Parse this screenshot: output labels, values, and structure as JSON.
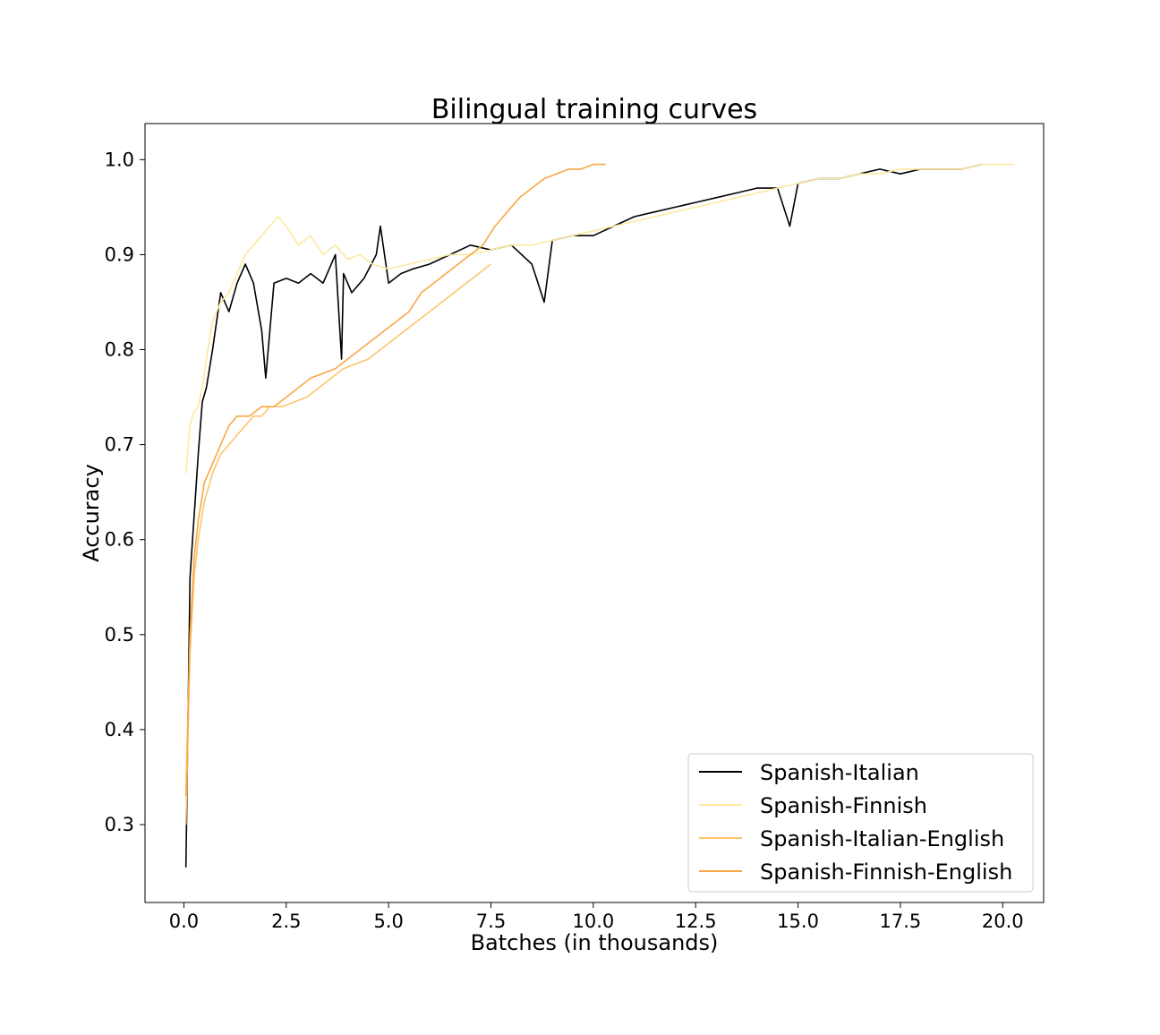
{
  "chart_data": {
    "type": "line",
    "title": "Bilingual training curves",
    "xlabel": "Batches (in thousands)",
    "ylabel": "Accuracy",
    "xlim": [
      -0.95,
      21.0
    ],
    "ylim": [
      0.218,
      1.038
    ],
    "xticks": [
      0.0,
      2.5,
      5.0,
      7.5,
      10.0,
      12.5,
      15.0,
      17.5,
      20.0
    ],
    "xtick_labels": [
      "0.0",
      "2.5",
      "5.0",
      "7.5",
      "10.0",
      "12.5",
      "15.0",
      "17.5",
      "20.0"
    ],
    "yticks": [
      0.3,
      0.4,
      0.5,
      0.6,
      0.7,
      0.8,
      0.9,
      1.0
    ],
    "ytick_labels": [
      "0.3",
      "0.4",
      "0.5",
      "0.6",
      "0.7",
      "0.8",
      "0.9",
      "1.0"
    ],
    "grid": false,
    "legend_position": "lower-right",
    "series": [
      {
        "name": "Spanish-Italian",
        "color": "#000000",
        "x": [
          0.05,
          0.15,
          0.25,
          0.35,
          0.45,
          0.55,
          0.7,
          0.9,
          1.1,
          1.3,
          1.5,
          1.7,
          1.9,
          2.0,
          2.2,
          2.5,
          2.8,
          3.1,
          3.4,
          3.7,
          3.85,
          3.9,
          4.1,
          4.4,
          4.7,
          4.8,
          5.0,
          5.3,
          5.6,
          6.0,
          6.5,
          7.0,
          7.5,
          8.0,
          8.5,
          8.8,
          9.0,
          9.5,
          10.0,
          10.5,
          11.0,
          11.5,
          12.0,
          12.5,
          13.0,
          13.5,
          14.0,
          14.5,
          14.8,
          15.0,
          15.5,
          16.0,
          16.5,
          17.0,
          17.5,
          18.0,
          18.5,
          19.0,
          19.5
        ],
        "y": [
          0.255,
          0.56,
          0.625,
          0.69,
          0.745,
          0.76,
          0.8,
          0.86,
          0.84,
          0.87,
          0.89,
          0.87,
          0.82,
          0.77,
          0.87,
          0.875,
          0.87,
          0.88,
          0.87,
          0.9,
          0.79,
          0.88,
          0.86,
          0.875,
          0.9,
          0.93,
          0.87,
          0.88,
          0.885,
          0.89,
          0.9,
          0.91,
          0.905,
          0.91,
          0.89,
          0.85,
          0.915,
          0.92,
          0.92,
          0.93,
          0.94,
          0.945,
          0.95,
          0.955,
          0.96,
          0.965,
          0.97,
          0.97,
          0.93,
          0.975,
          0.98,
          0.98,
          0.985,
          0.99,
          0.985,
          0.99,
          0.99,
          0.99,
          0.995
        ]
      },
      {
        "name": "Spanish-Finnish",
        "color": "#fde9a0",
        "x": [
          0.05,
          0.15,
          0.25,
          0.35,
          0.45,
          0.55,
          0.7,
          0.9,
          1.1,
          1.3,
          1.5,
          1.7,
          1.9,
          2.1,
          2.3,
          2.5,
          2.8,
          3.1,
          3.4,
          3.7,
          4.0,
          4.3,
          4.6,
          5.0,
          5.5,
          6.0,
          6.5,
          7.0,
          7.5,
          8.0,
          8.5,
          9.0,
          9.5,
          10.0,
          10.5,
          11.0,
          11.5,
          12.0,
          12.5,
          13.0,
          13.5,
          14.0,
          14.5,
          15.0,
          15.5,
          16.0,
          16.5,
          17.0,
          17.5,
          18.0,
          18.5,
          19.0,
          19.5,
          20.0,
          20.3
        ],
        "y": [
          0.67,
          0.72,
          0.735,
          0.74,
          0.76,
          0.79,
          0.83,
          0.85,
          0.86,
          0.88,
          0.9,
          0.91,
          0.92,
          0.93,
          0.94,
          0.93,
          0.91,
          0.92,
          0.9,
          0.91,
          0.895,
          0.9,
          0.89,
          0.885,
          0.89,
          0.895,
          0.9,
          0.9,
          0.905,
          0.91,
          0.91,
          0.915,
          0.92,
          0.925,
          0.93,
          0.935,
          0.94,
          0.945,
          0.95,
          0.955,
          0.96,
          0.965,
          0.97,
          0.975,
          0.98,
          0.98,
          0.985,
          0.985,
          0.99,
          0.99,
          0.99,
          0.99,
          0.995,
          0.995,
          0.995
        ]
      },
      {
        "name": "Spanish-Italian-English",
        "color": "#fdc46b",
        "x": [
          0.05,
          0.15,
          0.25,
          0.35,
          0.5,
          0.7,
          0.9,
          1.1,
          1.3,
          1.5,
          1.7,
          1.9,
          2.1,
          2.4,
          2.7,
          3.0,
          3.3,
          3.6,
          3.9,
          4.2,
          4.5,
          4.8,
          5.1,
          5.4,
          5.7,
          6.0,
          6.3,
          6.6,
          6.9,
          7.2,
          7.5
        ],
        "y": [
          0.3,
          0.48,
          0.56,
          0.6,
          0.64,
          0.67,
          0.69,
          0.7,
          0.71,
          0.72,
          0.73,
          0.73,
          0.74,
          0.74,
          0.745,
          0.75,
          0.76,
          0.77,
          0.78,
          0.785,
          0.79,
          0.8,
          0.81,
          0.82,
          0.83,
          0.84,
          0.85,
          0.86,
          0.87,
          0.88,
          0.89
        ]
      },
      {
        "name": "Spanish-Finnish-English",
        "color": "#f9a646",
        "x": [
          0.05,
          0.15,
          0.25,
          0.35,
          0.5,
          0.7,
          0.9,
          1.1,
          1.3,
          1.6,
          1.9,
          2.2,
          2.5,
          2.8,
          3.1,
          3.4,
          3.7,
          4.0,
          4.3,
          4.6,
          4.9,
          5.2,
          5.5,
          5.8,
          6.1,
          6.4,
          6.7,
          7.0,
          7.3,
          7.6,
          7.9,
          8.2,
          8.5,
          8.8,
          9.1,
          9.4,
          9.7,
          10.0,
          10.3
        ],
        "y": [
          0.33,
          0.5,
          0.58,
          0.62,
          0.66,
          0.68,
          0.7,
          0.72,
          0.73,
          0.73,
          0.74,
          0.74,
          0.75,
          0.76,
          0.77,
          0.775,
          0.78,
          0.79,
          0.8,
          0.81,
          0.82,
          0.83,
          0.84,
          0.86,
          0.87,
          0.88,
          0.89,
          0.9,
          0.91,
          0.93,
          0.945,
          0.96,
          0.97,
          0.98,
          0.985,
          0.99,
          0.99,
          0.995,
          0.995
        ]
      }
    ]
  }
}
